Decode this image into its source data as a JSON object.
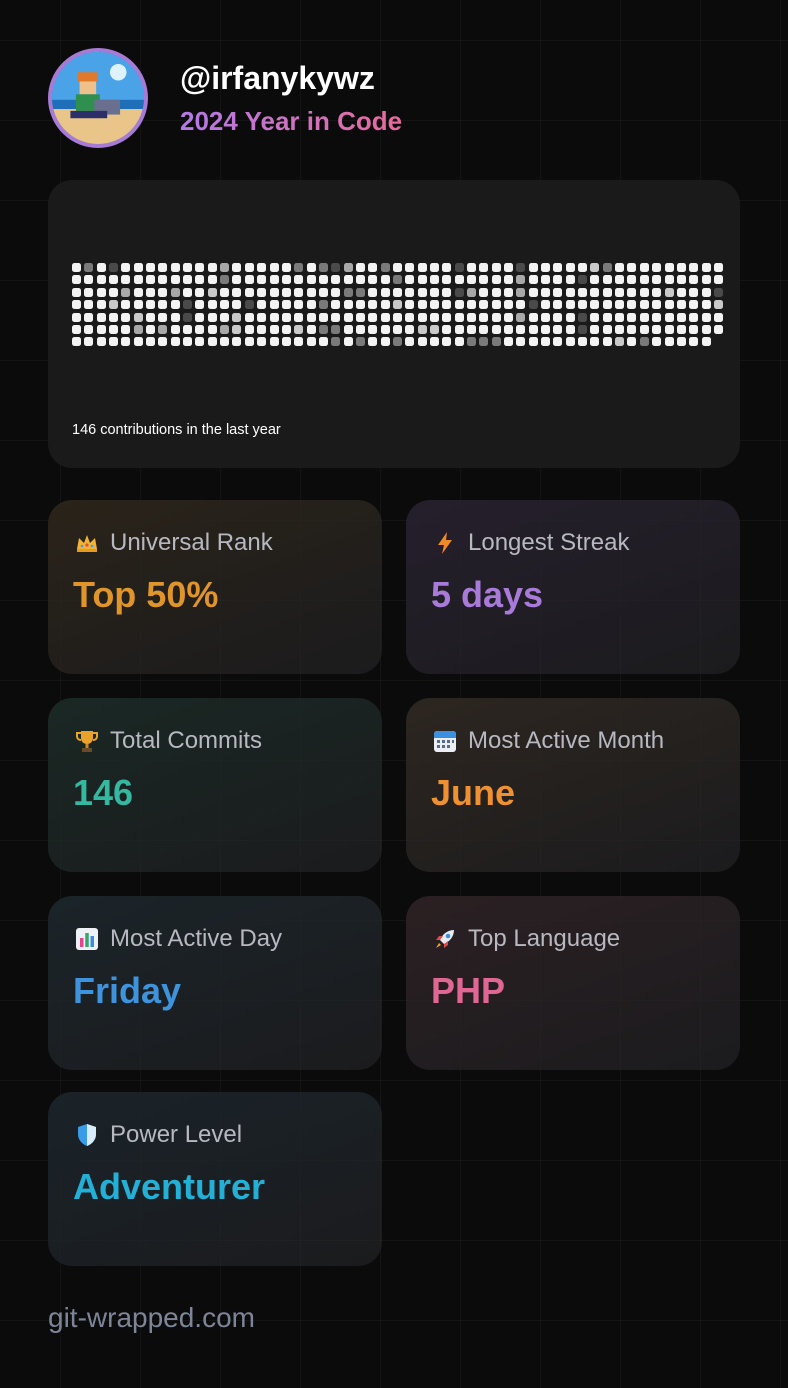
{
  "profile": {
    "username": "@irfanykywz",
    "subtitle": "2024 Year in Code"
  },
  "contributions": {
    "summary": "146 contributions in the last year"
  },
  "stats": [
    {
      "label": "Universal Rank",
      "value": "Top 50%",
      "icon": "crown-icon",
      "value_color": "#e0952a",
      "bg": "#2a2319"
    },
    {
      "label": "Longest Streak",
      "value": "5 days",
      "icon": "lightning-icon",
      "value_color": "#a87bd9",
      "bg": "#251f2c"
    },
    {
      "label": "Total Commits",
      "value": "146",
      "icon": "trophy-icon",
      "value_color": "#34b8a0",
      "bg": "#1a2824"
    },
    {
      "label": "Most Active Month",
      "value": "June",
      "icon": "calendar-icon",
      "value_color": "#ef9131",
      "bg": "#2d2620"
    },
    {
      "label": "Most Active Day",
      "value": "Friday",
      "icon": "bar-chart-icon",
      "value_color": "#3e94dc",
      "bg": "#1b2429"
    },
    {
      "label": "Top Language",
      "value": "PHP",
      "icon": "rocket-icon",
      "value_color": "#e06694",
      "bg": "#2b2023"
    },
    {
      "label": "Power Level",
      "value": "Adventurer",
      "icon": "shield-icon",
      "value_color": "#23b0d6",
      "bg": "#1a2329"
    }
  ],
  "footer": {
    "text": "git-wrapped.com"
  }
}
